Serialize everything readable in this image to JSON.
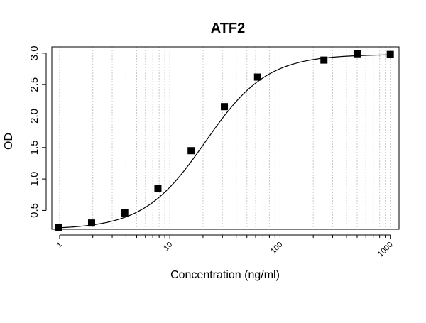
{
  "chart_data": {
    "type": "scatter",
    "title": "ATF2",
    "xlabel": "Concentration (ng/ml)",
    "ylabel": "OD",
    "x_scale": "log",
    "xlim": [
      0.85,
      1200
    ],
    "ylim": [
      0.2,
      3.1
    ],
    "x_ticks": [
      1,
      10,
      100,
      1000
    ],
    "x_tick_labels": [
      "1",
      "10",
      "100",
      "1000"
    ],
    "y_ticks": [
      0.5,
      1.0,
      1.5,
      2.0,
      2.5,
      3.0
    ],
    "y_tick_labels": [
      "0.5",
      "1.0",
      "1.5",
      "2.0",
      "2.5",
      "3.0"
    ],
    "grid": "vertical-dotted",
    "points": [
      {
        "x": 0.98,
        "y": 0.23
      },
      {
        "x": 1.95,
        "y": 0.3
      },
      {
        "x": 3.9,
        "y": 0.46
      },
      {
        "x": 7.8,
        "y": 0.85
      },
      {
        "x": 15.6,
        "y": 1.45
      },
      {
        "x": 31.25,
        "y": 2.15
      },
      {
        "x": 62.5,
        "y": 2.62
      },
      {
        "x": 250,
        "y": 2.89
      },
      {
        "x": 500,
        "y": 2.99
      },
      {
        "x": 1000,
        "y": 2.98
      }
    ],
    "fit": {
      "type": "4PL",
      "bottom": 0.2,
      "top": 2.98,
      "ec50": 21,
      "hill": 1.55
    },
    "marker": "square",
    "color": "#000000"
  }
}
